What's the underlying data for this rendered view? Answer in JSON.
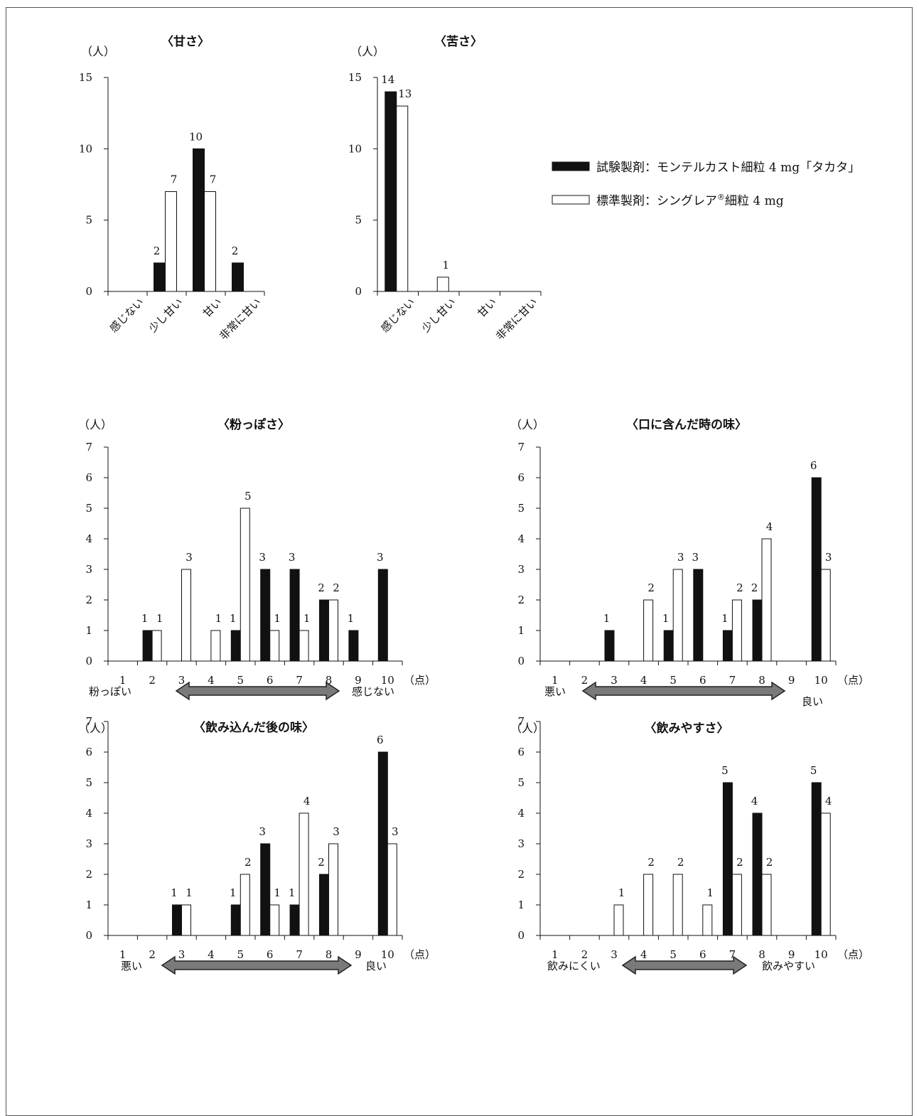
{
  "legend": {
    "test_label": "試験製剤：モンテルカスト細粒 4 mg「タカタ」",
    "ref_label_main": "標準製剤：シングレア",
    "ref_label_sup": "®",
    "ref_label_tail": "細粒 4 mg"
  },
  "colors": {
    "test": "#111111",
    "reference": "#ffffff",
    "arrow": "#7a7a7a"
  },
  "chart_data": [
    {
      "type": "bar",
      "title": "〈甘さ〉",
      "ylabel": "（人）",
      "xlabel": "",
      "ylim": [
        0,
        15
      ],
      "yticks": [
        0,
        5,
        10,
        15
      ],
      "categories": [
        "感じない",
        "少し甘い",
        "甘い",
        "非常に甘い"
      ],
      "series": [
        {
          "role": "test",
          "values": [
            0,
            2,
            10,
            2
          ]
        },
        {
          "role": "reference",
          "values": [
            0,
            7,
            7,
            0
          ]
        }
      ]
    },
    {
      "type": "bar",
      "title": "〈苦さ〉",
      "ylabel": "（人）",
      "xlabel": "",
      "ylim": [
        0,
        15
      ],
      "yticks": [
        0,
        5,
        10,
        15
      ],
      "categories": [
        "感じない",
        "少し甘い",
        "甘い",
        "非常に甘い"
      ],
      "series": [
        {
          "role": "test",
          "values": [
            14,
            0,
            0,
            0
          ]
        },
        {
          "role": "reference",
          "values": [
            13,
            1,
            0,
            0
          ]
        }
      ]
    },
    {
      "type": "bar",
      "title": "〈粉っぽさ〉",
      "ylabel": "（人）",
      "xlabel": "（点）",
      "ylim": [
        0,
        7
      ],
      "yticks": [
        0,
        1,
        2,
        3,
        4,
        5,
        6,
        7
      ],
      "categories": [
        "1",
        "2",
        "3",
        "4",
        "5",
        "6",
        "7",
        "8",
        "9",
        "10"
      ],
      "scale": {
        "left": "粉っぽい",
        "right": "感じない"
      },
      "series": [
        {
          "role": "test",
          "values": [
            0,
            1,
            0,
            0,
            1,
            3,
            3,
            2,
            1,
            3
          ]
        },
        {
          "role": "reference",
          "values": [
            0,
            1,
            3,
            1,
            5,
            1,
            1,
            2,
            0,
            0
          ]
        }
      ]
    },
    {
      "type": "bar",
      "title": "〈口に含んだ時の味〉",
      "ylabel": "（人）",
      "xlabel": "（点）",
      "ylim": [
        0,
        7
      ],
      "yticks": [
        0,
        1,
        2,
        3,
        4,
        5,
        6,
        7
      ],
      "categories": [
        "1",
        "2",
        "3",
        "4",
        "5",
        "6",
        "7",
        "8",
        "9",
        "10"
      ],
      "scale": {
        "left": "悪い",
        "right": "良い"
      },
      "series": [
        {
          "role": "test",
          "values": [
            0,
            0,
            1,
            0,
            1,
            3,
            1,
            2,
            0,
            6
          ]
        },
        {
          "role": "reference",
          "values": [
            0,
            0,
            0,
            2,
            3,
            0,
            2,
            4,
            0,
            3
          ]
        }
      ]
    },
    {
      "type": "bar",
      "title": "〈飲み込んだ後の味〉",
      "ylabel": "（人）",
      "xlabel": "（点）",
      "ylim": [
        0,
        7
      ],
      "yticks": [
        0,
        1,
        2,
        3,
        4,
        5,
        6,
        7
      ],
      "categories": [
        "1",
        "2",
        "3",
        "4",
        "5",
        "6",
        "7",
        "8",
        "9",
        "10"
      ],
      "scale": {
        "left": "悪い",
        "right": "良い"
      },
      "series": [
        {
          "role": "test",
          "values": [
            0,
            0,
            1,
            0,
            1,
            3,
            1,
            2,
            0,
            6
          ]
        },
        {
          "role": "reference",
          "values": [
            0,
            0,
            1,
            0,
            2,
            1,
            4,
            3,
            0,
            3
          ]
        }
      ]
    },
    {
      "type": "bar",
      "title": "〈飲みやすさ〉",
      "ylabel": "（人）",
      "xlabel": "（点）",
      "ylim": [
        0,
        7
      ],
      "yticks": [
        0,
        1,
        2,
        3,
        4,
        5,
        6,
        7
      ],
      "categories": [
        "1",
        "2",
        "3",
        "4",
        "5",
        "6",
        "7",
        "8",
        "9",
        "10"
      ],
      "scale": {
        "left": "飲みにくい",
        "right": "飲みやすい"
      },
      "series": [
        {
          "role": "test",
          "values": [
            0,
            0,
            0,
            0,
            0,
            0,
            5,
            4,
            0,
            5
          ]
        },
        {
          "role": "reference",
          "values": [
            0,
            0,
            1,
            2,
            2,
            1,
            2,
            2,
            0,
            4
          ]
        }
      ]
    }
  ]
}
